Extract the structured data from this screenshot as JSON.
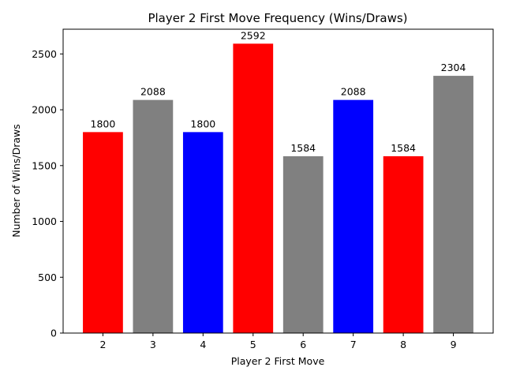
{
  "chart_data": {
    "type": "bar",
    "title": "Player 2 First Move Frequency (Wins/Draws)",
    "xlabel": "Player 2 First Move",
    "ylabel": "Number of Wins/Draws",
    "categories": [
      "2",
      "3",
      "4",
      "5",
      "6",
      "7",
      "8",
      "9"
    ],
    "values": [
      1800,
      2088,
      1800,
      2592,
      1584,
      2088,
      1584,
      2304
    ],
    "data_labels": [
      "1800",
      "2088",
      "1800",
      "2592",
      "1584",
      "2088",
      "1584",
      "2304"
    ],
    "bar_colors": [
      "#ff0000",
      "#808080",
      "#0000ff",
      "#ff0000",
      "#808080",
      "#0000ff",
      "#ff0000",
      "#808080"
    ],
    "ylim": [
      0,
      2721.6
    ],
    "yticks": [
      0,
      500,
      1000,
      1500,
      2000,
      2500
    ],
    "ytick_labels": [
      "0",
      "500",
      "1000",
      "1500",
      "2000",
      "2500"
    ],
    "grid": false,
    "legend": "none"
  }
}
